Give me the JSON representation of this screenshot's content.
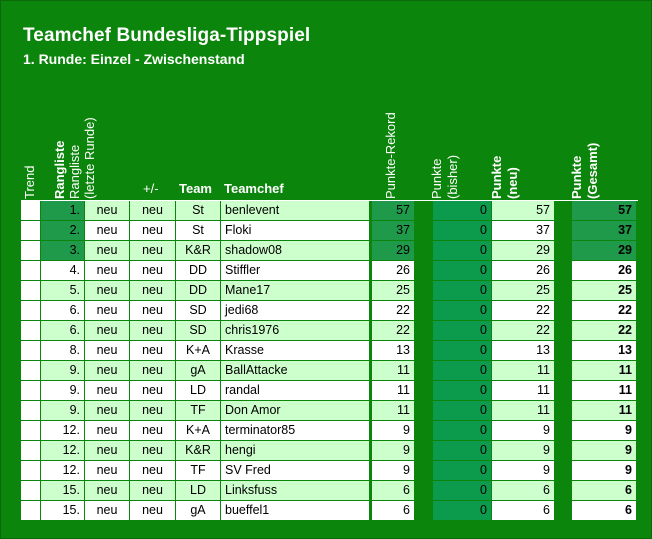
{
  "title": "Teamchef Bundesliga-Tippspiel",
  "subtitle": "1. Runde: Einzel - Zwischenstand",
  "headers": {
    "trend": "Trend",
    "rangliste": "Rangliste",
    "rangliste_last_1": "Rangliste",
    "rangliste_last_2": "(letzte Runde)",
    "plusminus": "+/-",
    "team": "Team",
    "teamchef": "Teamchef",
    "rekord": "Punkte-Rekord",
    "bisher_1": "Punkte",
    "bisher_2": "(bisher)",
    "neu_1": "Punkte",
    "neu_2": "(neu)",
    "gesamt_1": "Punkte",
    "gesamt_2": "(Gesamt)"
  },
  "colors": {
    "background": "#0c850c",
    "row_light": "#ccffcc",
    "row_white": "#ffffff",
    "row_top": "#1e9a4a",
    "bisher_col": "#0c9a4c"
  },
  "rows": [
    {
      "rank": "1.",
      "last": "neu",
      "pm": "neu",
      "team": "St",
      "name": "benlevent",
      "rekord": "57",
      "bisher": "0",
      "neu": "57",
      "gesamt": "57"
    },
    {
      "rank": "2.",
      "last": "neu",
      "pm": "neu",
      "team": "St",
      "name": "Floki",
      "rekord": "37",
      "bisher": "0",
      "neu": "37",
      "gesamt": "37"
    },
    {
      "rank": "3.",
      "last": "neu",
      "pm": "neu",
      "team": "K&R",
      "name": "shadow08",
      "rekord": "29",
      "bisher": "0",
      "neu": "29",
      "gesamt": "29"
    },
    {
      "rank": "4.",
      "last": "neu",
      "pm": "neu",
      "team": "DD",
      "name": "Stiffler",
      "rekord": "26",
      "bisher": "0",
      "neu": "26",
      "gesamt": "26"
    },
    {
      "rank": "5.",
      "last": "neu",
      "pm": "neu",
      "team": "DD",
      "name": "Mane17",
      "rekord": "25",
      "bisher": "0",
      "neu": "25",
      "gesamt": "25"
    },
    {
      "rank": "6.",
      "last": "neu",
      "pm": "neu",
      "team": "SD",
      "name": "jedi68",
      "rekord": "22",
      "bisher": "0",
      "neu": "22",
      "gesamt": "22"
    },
    {
      "rank": "6.",
      "last": "neu",
      "pm": "neu",
      "team": "SD",
      "name": "chris1976",
      "rekord": "22",
      "bisher": "0",
      "neu": "22",
      "gesamt": "22"
    },
    {
      "rank": "8.",
      "last": "neu",
      "pm": "neu",
      "team": "K+A",
      "name": "Krasse",
      "rekord": "13",
      "bisher": "0",
      "neu": "13",
      "gesamt": "13"
    },
    {
      "rank": "9.",
      "last": "neu",
      "pm": "neu",
      "team": "gA",
      "name": "BallAttacke",
      "rekord": "11",
      "bisher": "0",
      "neu": "11",
      "gesamt": "11"
    },
    {
      "rank": "9.",
      "last": "neu",
      "pm": "neu",
      "team": "LD",
      "name": "randal",
      "rekord": "11",
      "bisher": "0",
      "neu": "11",
      "gesamt": "11"
    },
    {
      "rank": "9.",
      "last": "neu",
      "pm": "neu",
      "team": "TF",
      "name": "Don Amor",
      "rekord": "11",
      "bisher": "0",
      "neu": "11",
      "gesamt": "11"
    },
    {
      "rank": "12.",
      "last": "neu",
      "pm": "neu",
      "team": "K+A",
      "name": "terminator85",
      "rekord": "9",
      "bisher": "0",
      "neu": "9",
      "gesamt": "9"
    },
    {
      "rank": "12.",
      "last": "neu",
      "pm": "neu",
      "team": "K&R",
      "name": "hengi",
      "rekord": "9",
      "bisher": "0",
      "neu": "9",
      "gesamt": "9"
    },
    {
      "rank": "12.",
      "last": "neu",
      "pm": "neu",
      "team": "TF",
      "name": "SV Fred",
      "rekord": "9",
      "bisher": "0",
      "neu": "9",
      "gesamt": "9"
    },
    {
      "rank": "15.",
      "last": "neu",
      "pm": "neu",
      "team": "LD",
      "name": "Linksfuss",
      "rekord": "6",
      "bisher": "0",
      "neu": "6",
      "gesamt": "6"
    },
    {
      "rank": "15.",
      "last": "neu",
      "pm": "neu",
      "team": "gA",
      "name": "bueffel1",
      "rekord": "6",
      "bisher": "0",
      "neu": "6",
      "gesamt": "6"
    }
  ]
}
